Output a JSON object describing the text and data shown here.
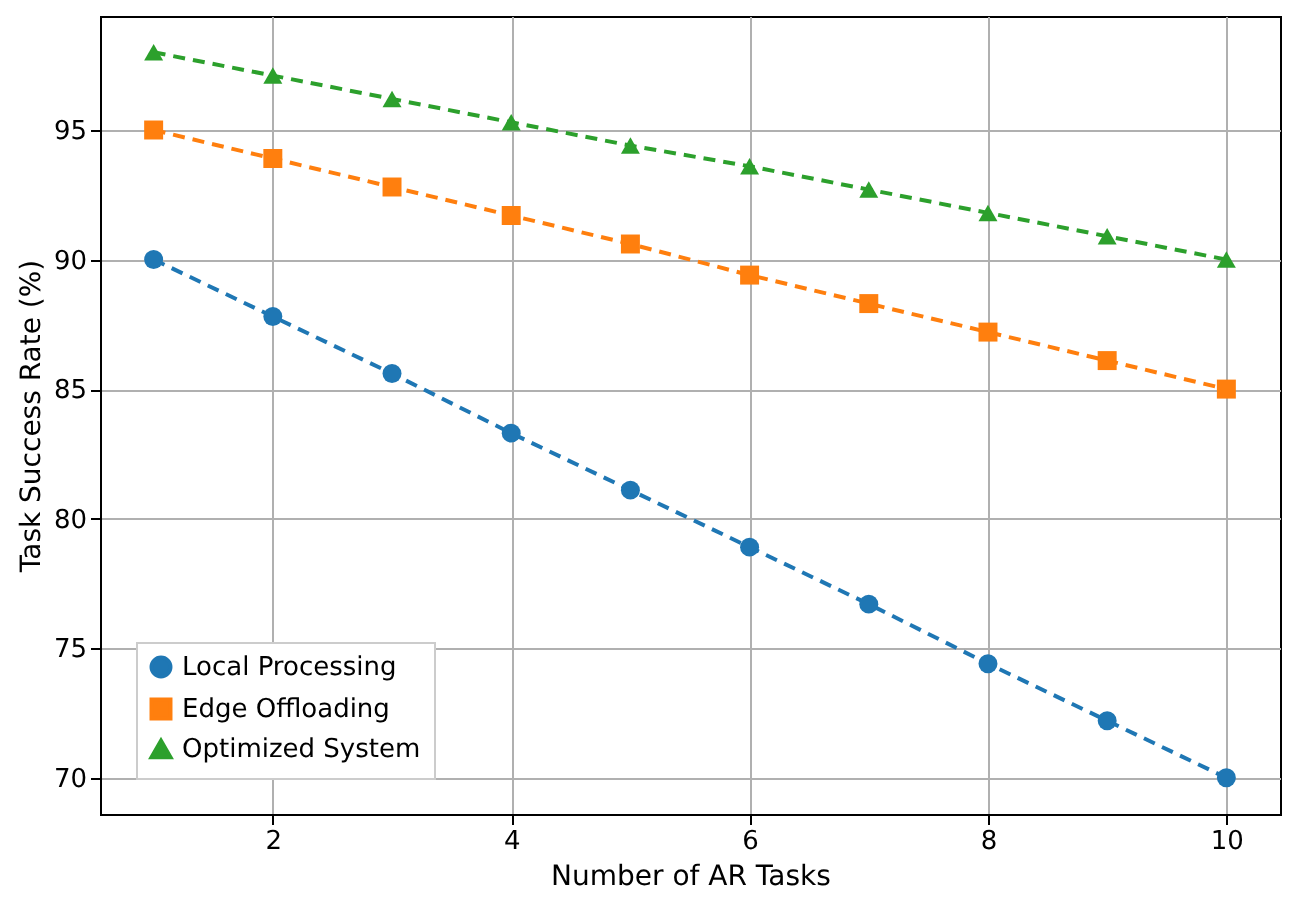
{
  "chart_data": {
    "type": "line",
    "xlabel": "Number of AR Tasks",
    "ylabel": "Task Success Rate (%)",
    "x": [
      1,
      2,
      3,
      4,
      5,
      6,
      7,
      8,
      9,
      10
    ],
    "series": [
      {
        "name": "Local Processing",
        "color": "#1f77b4",
        "marker": "circle",
        "values": [
          90,
          87.8,
          85.6,
          83.3,
          81.1,
          78.9,
          76.7,
          74.4,
          72.2,
          70
        ]
      },
      {
        "name": "Edge Offloading",
        "color": "#ff7f0e",
        "marker": "square",
        "values": [
          95,
          93.9,
          92.8,
          91.7,
          90.6,
          89.4,
          88.3,
          87.2,
          86.1,
          85
        ]
      },
      {
        "name": "Optimized System",
        "color": "#2ca02c",
        "marker": "triangle",
        "values": [
          98,
          97.1,
          96.2,
          95.3,
          94.4,
          93.6,
          92.7,
          91.8,
          90.9,
          90
        ]
      }
    ],
    "xlim": [
      0.55,
      10.45
    ],
    "ylim": [
      68.6,
      99.4
    ],
    "xticks": [
      2,
      4,
      6,
      8,
      10
    ],
    "yticks": [
      70,
      75,
      80,
      85,
      90,
      95
    ],
    "grid": true,
    "legend": "lower left",
    "line_style": "dashed"
  }
}
